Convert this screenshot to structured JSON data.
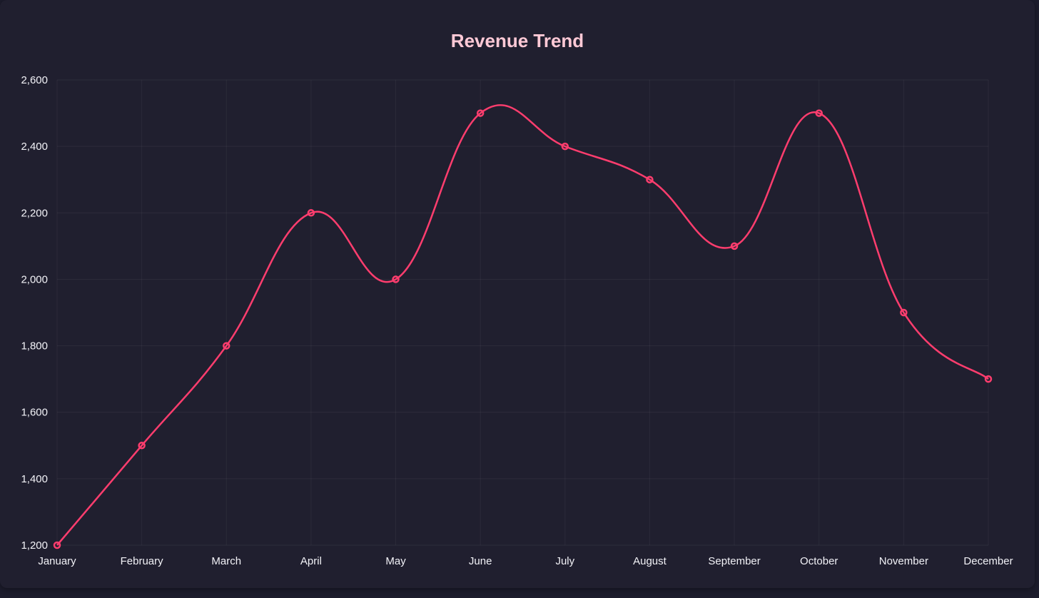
{
  "chart_data": {
    "type": "line",
    "title": "Revenue Trend",
    "categories": [
      "January",
      "February",
      "March",
      "April",
      "May",
      "June",
      "July",
      "August",
      "September",
      "October",
      "November",
      "December"
    ],
    "series": [
      {
        "values": [
          1200,
          1500,
          1800,
          2200,
          2000,
          2500,
          2400,
          2300,
          2100,
          2500,
          1900,
          1700
        ]
      }
    ],
    "ylim": [
      1200,
      2600
    ],
    "yticks": [
      "1,200",
      "1,400",
      "1,600",
      "1,800",
      "2,000",
      "2,200",
      "2,400",
      "2,600"
    ],
    "grid": true,
    "smooth": true,
    "line_color": "#ff3d6e",
    "background_color": "#201f2f",
    "title_color": "#ffc9d6"
  }
}
